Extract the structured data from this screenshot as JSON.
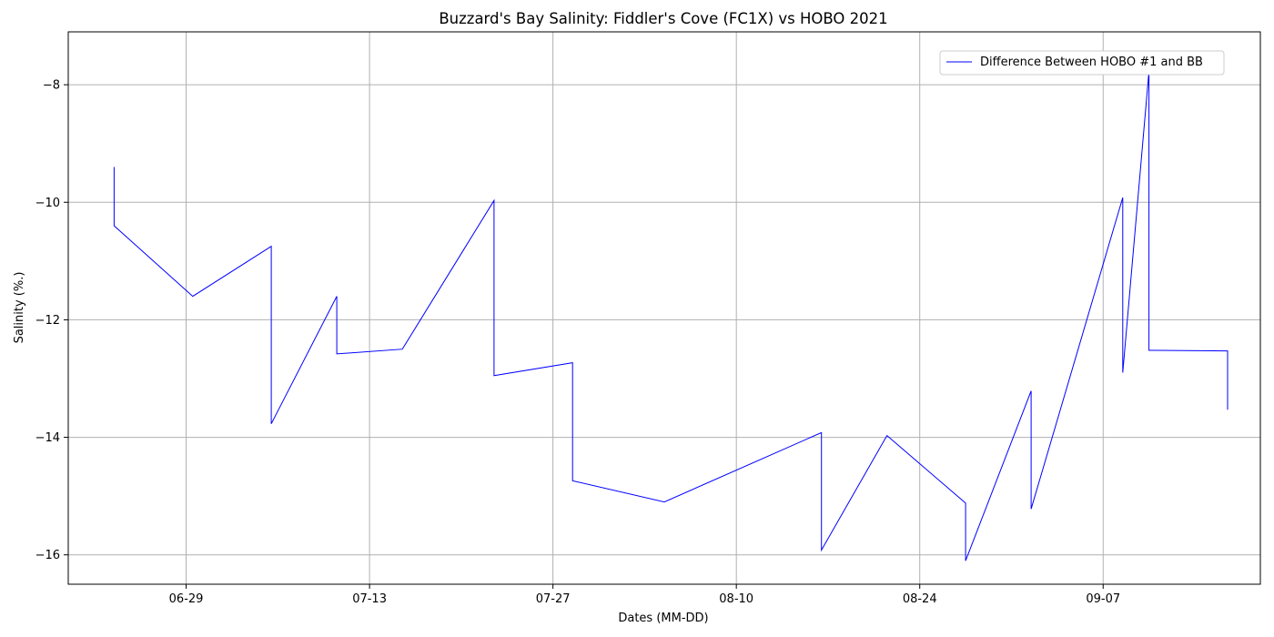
{
  "chart_data": {
    "type": "line",
    "title": "Buzzard's Bay Salinity: Fiddler's Cove (FC1X) vs HOBO 2021",
    "xlabel": "Dates (MM-DD)",
    "ylabel": "Salinity (%.)",
    "x_tick_labels": [
      "06-29",
      "07-13",
      "07-27",
      "08-10",
      "08-24",
      "09-07"
    ],
    "x_tick_dates": [
      "2021-06-29",
      "2021-07-13",
      "2021-07-27",
      "2021-08-10",
      "2021-08-24",
      "2021-09-07"
    ],
    "y_ticks": [
      -16,
      -14,
      -12,
      -10,
      -8
    ],
    "y_tick_labels": [
      "−16",
      "−14",
      "−12",
      "−10",
      "−8"
    ],
    "xlim": [
      "2021-06-20",
      "2021-09-19"
    ],
    "ylim": [
      -16.5,
      -7.1
    ],
    "grid": true,
    "legend_position": "top-right",
    "series": [
      {
        "name": "Difference Between HOBO #1 and BB",
        "color": "#0000ff",
        "x": [
          "2021-06-23 12:00",
          "2021-06-23 12:00",
          "2021-06-29 12:00",
          "2021-07-05 12:00",
          "2021-07-05 12:00",
          "2021-07-10 12:00",
          "2021-07-10 12:00",
          "2021-07-15 12:00",
          "2021-07-22 12:00",
          "2021-07-22 12:00",
          "2021-07-28 12:00",
          "2021-07-28 12:00",
          "2021-08-04 12:00",
          "2021-08-16 12:00",
          "2021-08-16 12:00",
          "2021-08-21 12:00",
          "2021-08-27 12:00",
          "2021-08-27 12:00",
          "2021-09-01 12:00",
          "2021-09-01 12:00",
          "2021-09-08 12:00",
          "2021-09-08 12:00",
          "2021-09-10 12:00",
          "2021-09-10 12:00",
          "2021-09-16 12:00",
          "2021-09-16 12:00"
        ],
        "values": [
          -9.4,
          -10.4,
          -11.6,
          -10.75,
          -13.77,
          -11.6,
          -12.58,
          -12.5,
          -9.97,
          -12.95,
          -12.73,
          -14.74,
          -15.1,
          -13.92,
          -15.92,
          -13.97,
          -15.12,
          -16.1,
          -13.21,
          -15.22,
          -9.92,
          -12.9,
          -7.77,
          -12.52,
          -12.53,
          -13.53
        ]
      }
    ]
  }
}
